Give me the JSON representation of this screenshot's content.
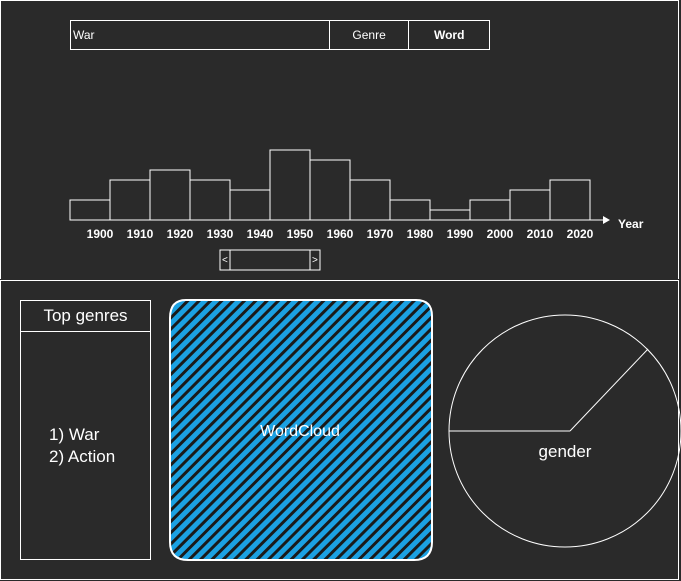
{
  "search": {
    "value": "War",
    "genre_label": "Genre",
    "word_label": "Word"
  },
  "chart_data": {
    "type": "bar",
    "categories": [
      "1900",
      "1910",
      "1920",
      "1930",
      "1940",
      "1950",
      "1960",
      "1970",
      "1980",
      "1990",
      "2000",
      "2010",
      "2020"
    ],
    "values": [
      2,
      4,
      5,
      4,
      3,
      7,
      6,
      4,
      2,
      1,
      2,
      3,
      4
    ],
    "xlabel": "Year",
    "ylabel": "",
    "ylim": [
      0,
      10
    ]
  },
  "range_slider": {
    "left_glyph": "<",
    "right_glyph": ">"
  },
  "top_genres": {
    "title": "Top genres",
    "items": [
      "1) War",
      "2) Action"
    ]
  },
  "wordcloud": {
    "label": "WordCloud",
    "fill_color": "#1ba1e2"
  },
  "gender_chart": {
    "label": "gender"
  }
}
